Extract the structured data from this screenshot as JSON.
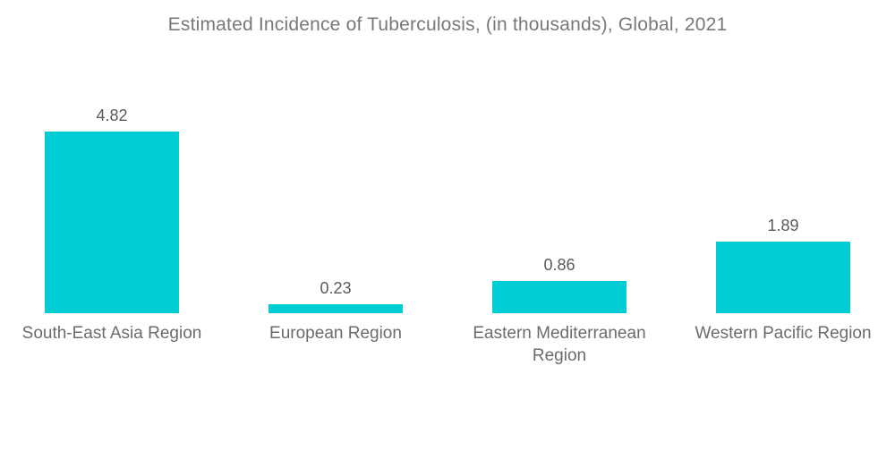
{
  "chart_data": {
    "type": "bar",
    "title": "Estimated Incidence of Tuberculosis, (in thousands), Global, 2021",
    "categories": [
      "South-East Asia Region",
      "European Region",
      "Eastern Mediterranean Region",
      "Western Pacific Region"
    ],
    "values": [
      4.82,
      0.23,
      0.86,
      1.89
    ],
    "value_labels": [
      "4.82",
      "0.23",
      "0.86",
      "1.89"
    ],
    "xlabel": "",
    "ylabel": "",
    "ylim": [
      0,
      4.82
    ],
    "grid": false,
    "legend": false,
    "axes_visible": false,
    "colors": {
      "bar": "#00CDD3",
      "title_text": "#787878",
      "value_text": "#5a5a5a",
      "category_text": "#6b6b6b",
      "background": "#ffffff"
    }
  }
}
